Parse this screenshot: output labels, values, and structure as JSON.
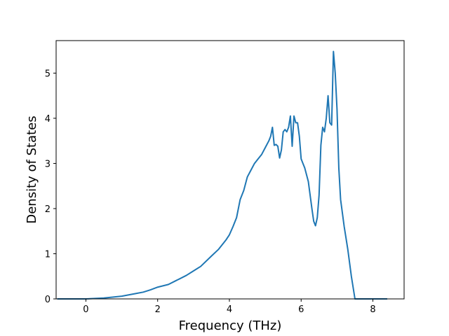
{
  "chart_data": {
    "type": "line",
    "title": "",
    "xlabel": "Frequency (THz)",
    "ylabel": "Density of States",
    "xlim": [
      -0.83,
      8.87
    ],
    "ylim": [
      0,
      5.72
    ],
    "xticks": [
      0,
      2,
      4,
      6,
      8
    ],
    "yticks": [
      0,
      1,
      2,
      3,
      4,
      5
    ],
    "grid": false,
    "legend": "none",
    "line_color": "#1f77b4",
    "series": [
      {
        "x": [
          -0.8,
          0.0,
          0.5,
          1.0,
          1.4,
          1.6,
          1.8,
          2.0,
          2.3,
          2.5,
          2.8,
          3.0,
          3.2,
          3.5,
          3.7,
          3.9,
          4.0,
          4.1,
          4.2,
          4.3,
          4.4,
          4.5,
          4.6,
          4.7,
          4.8,
          4.9,
          5.0,
          5.1,
          5.15,
          5.2,
          5.25,
          5.3,
          5.35,
          5.4,
          5.45,
          5.5,
          5.55,
          5.6,
          5.65,
          5.7,
          5.75,
          5.8,
          5.85,
          5.9,
          5.95,
          6.0,
          6.05,
          6.1,
          6.2,
          6.3,
          6.35,
          6.4,
          6.45,
          6.5,
          6.55,
          6.6,
          6.65,
          6.7,
          6.75,
          6.8,
          6.85,
          6.9,
          6.95,
          7.0,
          7.05,
          7.1,
          7.2,
          7.3,
          7.4,
          7.5,
          7.6,
          7.7,
          7.8,
          8.0,
          8.4
        ],
        "y": [
          0.0,
          0.0,
          0.02,
          0.06,
          0.12,
          0.15,
          0.2,
          0.26,
          0.32,
          0.4,
          0.52,
          0.62,
          0.72,
          0.95,
          1.1,
          1.3,
          1.42,
          1.6,
          1.8,
          2.2,
          2.4,
          2.7,
          2.85,
          3.0,
          3.1,
          3.2,
          3.35,
          3.5,
          3.6,
          3.8,
          3.4,
          3.42,
          3.38,
          3.12,
          3.3,
          3.7,
          3.75,
          3.7,
          3.8,
          4.05,
          3.38,
          4.05,
          3.9,
          3.9,
          3.6,
          3.1,
          3.0,
          2.9,
          2.6,
          2.0,
          1.72,
          1.62,
          1.8,
          2.3,
          3.4,
          3.8,
          3.7,
          4.0,
          4.5,
          3.9,
          3.85,
          5.48,
          5.0,
          4.2,
          2.9,
          2.2,
          1.6,
          1.1,
          0.5,
          0.0,
          0.0,
          0.0,
          0.0,
          0.0,
          0.0
        ]
      }
    ]
  }
}
